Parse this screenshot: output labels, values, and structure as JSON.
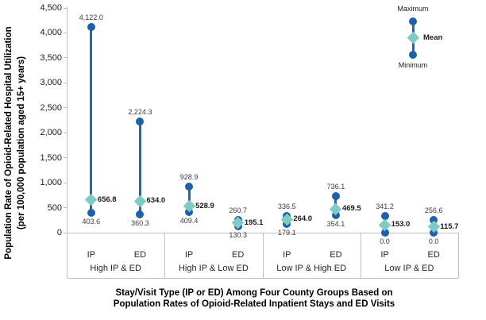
{
  "chart_data": {
    "type": "range-dot-minmeanmax",
    "title": "",
    "ylabel_line1": "Population Rate of Opioid-Related Hospital Utilization",
    "ylabel_line2": "(per 100,000 population aged 15+ years)",
    "xlabel_line1": "Stay/Visit Type (IP or ED) Among Four County Groups Based on",
    "xlabel_line2": "Population Rates of Opioid-Related Inpatient Stays and ED Visits",
    "ylim": [
      0,
      4500
    ],
    "ytick_step": 500,
    "ytick_labels": [
      "0",
      "500",
      "1,000",
      "1,500",
      "2,000",
      "2,500",
      "3,000",
      "3,500",
      "4,000",
      "4,500"
    ],
    "grid": "off",
    "legend": {
      "position": "top-right",
      "max_label": "Maximum",
      "mean_label": "Mean",
      "min_label": "Minimum"
    },
    "groups": [
      {
        "label": "High IP & ED",
        "series": [
          {
            "label": "IP",
            "min": 403.6,
            "mean": 656.8,
            "max": 4122.0,
            "min_text": "403.6",
            "mean_text": "656.8",
            "max_text": "4,122.0"
          },
          {
            "label": "ED",
            "min": 360.3,
            "mean": 634.0,
            "max": 2224.3,
            "min_text": "360.3",
            "mean_text": "634.0",
            "max_text": "2,224.3"
          }
        ]
      },
      {
        "label": "High IP & Low ED",
        "series": [
          {
            "label": "IP",
            "min": 409.4,
            "mean": 528.9,
            "max": 928.9,
            "min_text": "409.4",
            "mean_text": "528.9",
            "max_text": "928.9"
          },
          {
            "label": "ED",
            "min": 130.3,
            "mean": 195.1,
            "max": 260.7,
            "min_text": "130.3",
            "mean_text": "195.1",
            "max_text": "260.7"
          }
        ]
      },
      {
        "label": "Low IP & High ED",
        "series": [
          {
            "label": "IP",
            "min": 179.1,
            "mean": 264.0,
            "max": 336.5,
            "min_text": "179.1",
            "mean_text": "264.0",
            "max_text": "336.5"
          },
          {
            "label": "ED",
            "min": 354.1,
            "mean": 469.5,
            "max": 736.1,
            "min_text": "354.1",
            "mean_text": "469.5",
            "max_text": "736.1"
          }
        ]
      },
      {
        "label": "Low IP & ED",
        "series": [
          {
            "label": "IP",
            "min": 0.0,
            "mean": 153.0,
            "max": 341.2,
            "min_text": "0.0",
            "mean_text": "153.0",
            "max_text": "341.2"
          },
          {
            "label": "ED",
            "min": 0.0,
            "mean": 115.7,
            "max": 256.6,
            "min_text": "0.0",
            "mean_text": "115.7",
            "max_text": "256.6"
          }
        ]
      }
    ],
    "colors": {
      "range_line": "#2169ac",
      "marker_blue": "#1d61a8",
      "mean_diamond": "#7fcbc5",
      "axis_gray": "#bfbfbf",
      "label_text": "#3b3b3b"
    }
  }
}
